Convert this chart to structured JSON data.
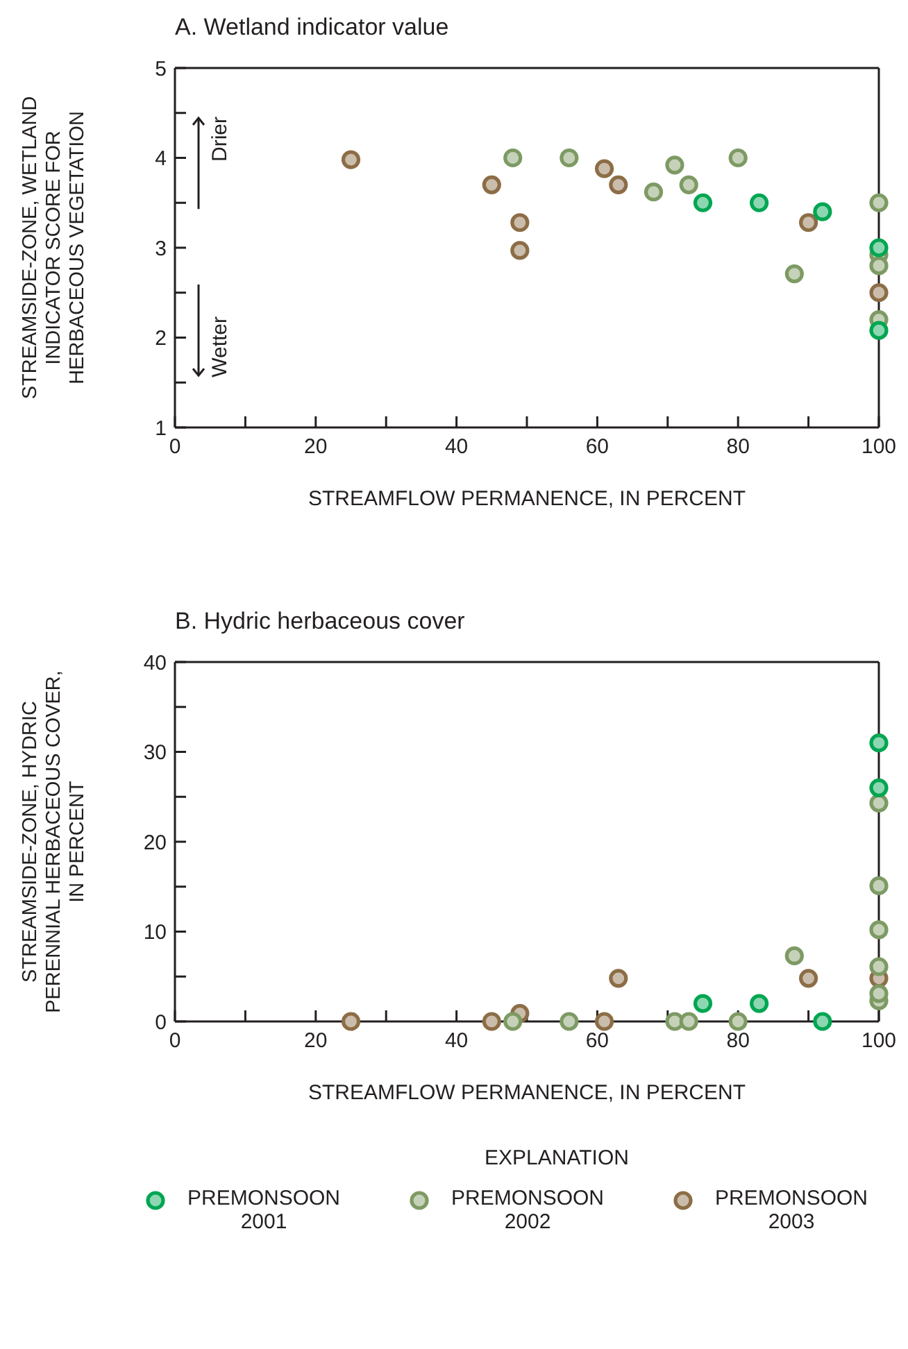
{
  "chart_data": [
    {
      "type": "scatter",
      "title": "A. Wetland indicator value",
      "xlabel": "STREAMFLOW PERMANENCE, IN PERCENT",
      "ylabel": "STREAMSIDE-ZONE, WETLAND INDICATOR SCORE FOR HERBACEOUS VEGETATION",
      "annotations": [
        "Drier",
        "Wetter"
      ],
      "xlim": [
        0,
        100
      ],
      "xticks": [
        0,
        {
          "value": 10,
          "label": null
        },
        20,
        {
          "value": 30,
          "label": null
        },
        40,
        {
          "value": 50,
          "label": null
        },
        60,
        {
          "value": 70,
          "label": null
        },
        80,
        {
          "value": 90,
          "label": null
        },
        100
      ],
      "ylim": [
        1,
        5
      ],
      "yticks": [
        1,
        {
          "value": 1.5,
          "label": null
        },
        2,
        {
          "value": 2.5,
          "label": null
        },
        3,
        {
          "value": 3.5,
          "label": null
        },
        4,
        {
          "value": 4.5,
          "label": null
        },
        5
      ],
      "marker": "circle",
      "series": [
        {
          "color": "#00a651",
          "x": [
            75,
            83,
            92,
            100,
            100
          ],
          "values": [
            3.5,
            3.5,
            3.4,
            3.0,
            2.08
          ]
        },
        {
          "color": "#7d9a63",
          "x": [
            48,
            56,
            68,
            71,
            73,
            80,
            88,
            100,
            100,
            100,
            100
          ],
          "values": [
            4.0,
            4.0,
            3.62,
            3.92,
            3.7,
            4.0,
            2.71,
            3.5,
            2.92,
            2.8,
            2.2
          ]
        },
        {
          "color": "#8c6d46",
          "x": [
            25,
            45,
            49,
            49,
            61,
            63,
            90,
            100
          ],
          "values": [
            3.98,
            3.7,
            3.28,
            2.97,
            3.88,
            3.7,
            3.28,
            2.5
          ]
        }
      ]
    },
    {
      "type": "scatter",
      "title": "B. Hydric herbaceous cover",
      "xlabel": "STREAMFLOW PERMANENCE, IN PERCENT",
      "ylabel": "STREAMSIDE-ZONE, HYDRIC PERENNIAL HERBACEOUS COVER, IN PERCENT",
      "xlim": [
        0,
        100
      ],
      "xticks": [
        0,
        {
          "value": 10,
          "label": null
        },
        20,
        {
          "value": 30,
          "label": null
        },
        40,
        {
          "value": 50,
          "label": null
        },
        60,
        {
          "value": 70,
          "label": null
        },
        80,
        {
          "value": 90,
          "label": null
        },
        100
      ],
      "ylim": [
        0,
        40
      ],
      "yticks": [
        0,
        {
          "value": 5,
          "label": null
        },
        10,
        {
          "value": 15,
          "label": null
        },
        20,
        {
          "value": 25,
          "label": null
        },
        30,
        {
          "value": 35,
          "label": null
        },
        40
      ],
      "marker": "circle",
      "legend": "bottom",
      "legend_title": "EXPLANATION",
      "series": [
        {
          "name": "PREMONSOON 2001",
          "color": "#00a651",
          "x": [
            75,
            83,
            92,
            100,
            100
          ],
          "values": [
            2,
            2,
            0,
            31,
            26
          ]
        },
        {
          "name": "PREMONSOON 2002",
          "color": "#7d9a63",
          "x": [
            48,
            56,
            71,
            73,
            80,
            88,
            100,
            100,
            100,
            100,
            100,
            100
          ],
          "values": [
            0,
            0,
            0,
            0,
            0,
            7.3,
            24.3,
            15.1,
            10.2,
            6.1,
            2.3,
            3.1
          ]
        },
        {
          "name": "PREMONSOON 2003",
          "color": "#8c6d46",
          "x": [
            25,
            45,
            49,
            61,
            63,
            90,
            100
          ],
          "values": [
            0,
            0,
            0.9,
            0,
            4.8,
            4.8,
            4.8
          ]
        }
      ]
    }
  ]
}
